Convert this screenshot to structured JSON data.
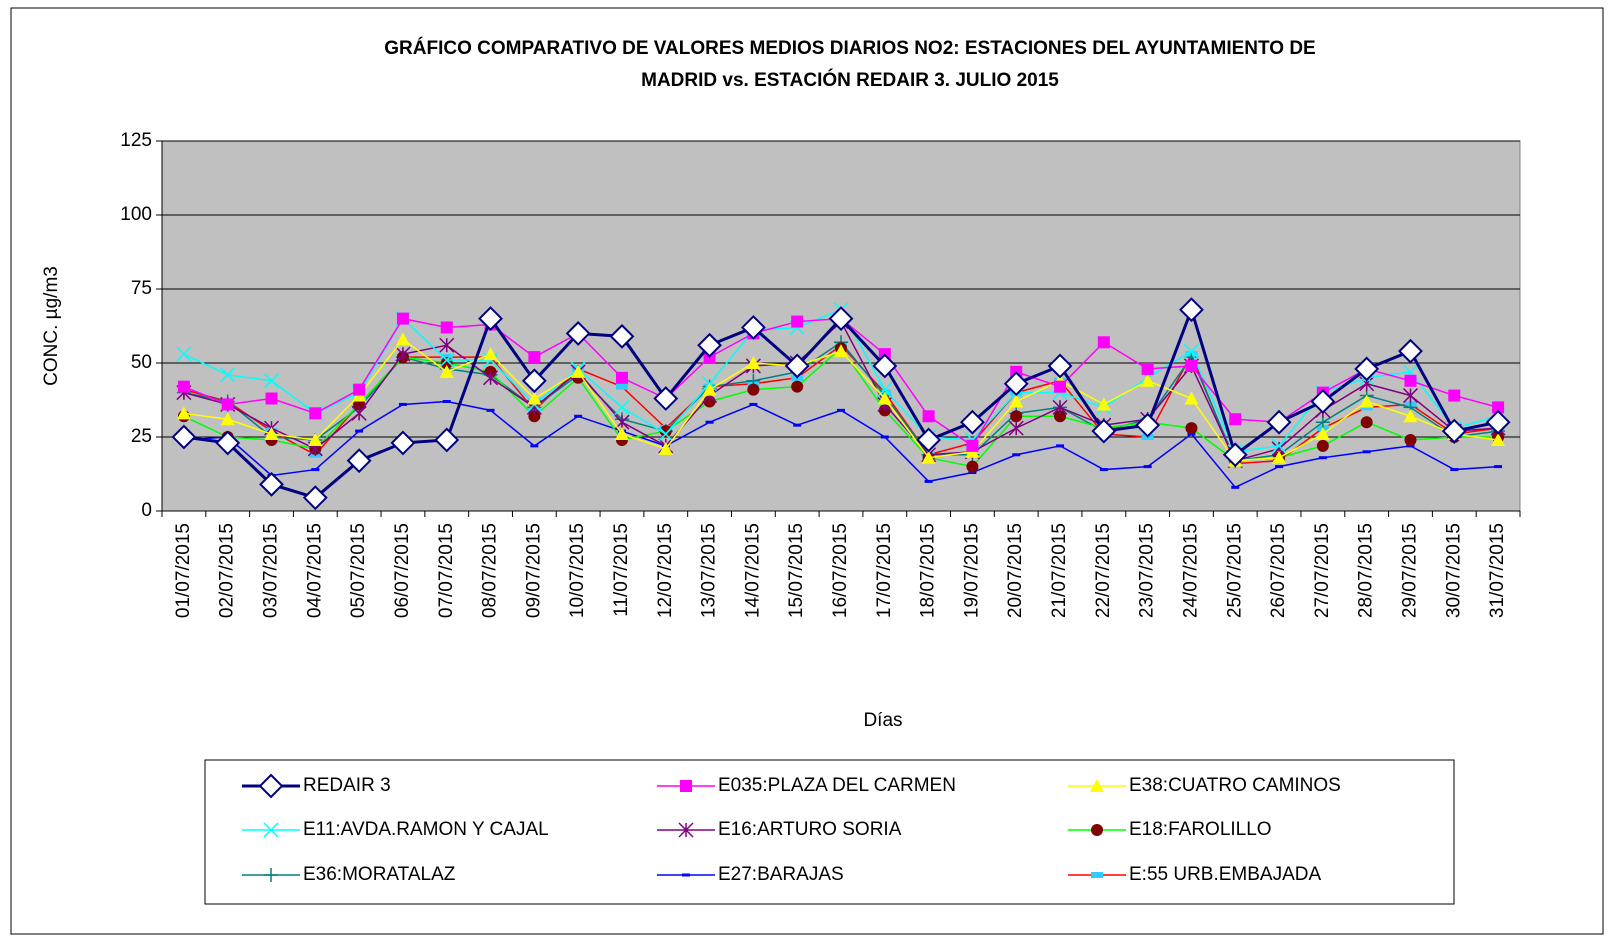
{
  "chart_data": {
    "type": "line",
    "title": [
      "GRÁFICO COMPARATIVO DE VALORES MEDIOS DIARIOS NO2: ESTACIONES DEL AYUNTAMIENTO DE",
      "MADRID vs.  ESTACIÓN REDAIR 3. JULIO 2015"
    ],
    "x_label": "Días",
    "y_label": "CONC.   µg/m3",
    "categories": [
      "01/07/2015",
      "02/07/2015",
      "03/07/2015",
      "04/07/2015",
      "05/07/2015",
      "06/07/2015",
      "07/07/2015",
      "08/07/2015",
      "09/07/2015",
      "10/07/2015",
      "11/07/2015",
      "12/07/2015",
      "13/07/2015",
      "14/07/2015",
      "15/07/2015",
      "16/07/2015",
      "17/07/2015",
      "18/07/2015",
      "19/07/2015",
      "20/07/2015",
      "21/07/2015",
      "22/07/2015",
      "23/07/2015",
      "24/07/2015",
      "25/07/2015",
      "26/07/2015",
      "27/07/2015",
      "28/07/2015",
      "29/07/2015",
      "30/07/2015",
      "31/07/2015"
    ],
    "ylim": [
      0,
      125
    ],
    "yticks": [
      0,
      25,
      50,
      75,
      100,
      125
    ],
    "grid": true,
    "plot_background": "#c0c0c0",
    "series": [
      {
        "name": "REDAIR 3",
        "color": "#000080",
        "marker": "diamond",
        "marker_color": "#000080",
        "values": [
          25,
          23,
          9,
          4.5,
          17,
          23,
          24,
          65,
          44,
          60,
          59,
          38,
          56,
          62,
          49,
          65,
          49,
          24,
          30,
          43,
          49,
          27,
          29,
          68,
          19,
          30,
          37,
          48,
          54,
          27,
          30
        ]
      },
      {
        "name": "E035:PLAZA DEL CARMEN",
        "color": "#ff00ff",
        "marker": "square",
        "marker_color": "#ff00ff",
        "values": [
          42,
          36,
          38,
          33,
          41,
          65,
          62,
          63,
          52,
          60,
          45,
          38,
          52,
          60,
          64,
          65,
          53,
          32,
          22,
          47,
          42,
          57,
          48,
          49,
          31,
          30,
          40,
          48,
          44,
          39,
          35
        ]
      },
      {
        "name": "E38:CUATRO CAMINOS",
        "color": "#ffff00",
        "marker": "triangle",
        "marker_color": "#ffff00",
        "values": [
          33,
          31,
          26,
          24,
          39,
          58,
          47,
          53,
          38,
          47,
          26,
          21,
          41,
          50,
          49,
          54,
          38,
          18,
          20,
          37,
          44,
          36,
          44,
          38,
          17,
          18,
          26,
          37,
          32,
          26,
          24
        ]
      },
      {
        "name": "E11:AVDA.RAMON Y CAJAL",
        "color": "#00ffff",
        "marker": "x",
        "marker_color": "#00ffff",
        "values": [
          53,
          46,
          44,
          33,
          40,
          65,
          51,
          51,
          36,
          48,
          35,
          26,
          43,
          61,
          62,
          68,
          41,
          25,
          24,
          40,
          40,
          35,
          45,
          54,
          20,
          22,
          40,
          45,
          47,
          28,
          32
        ]
      },
      {
        "name": "E16:ARTURO SORIA",
        "color": "#800080",
        "marker": "star",
        "marker_color": "#800080",
        "values": [
          40,
          36,
          28,
          21,
          33,
          53,
          56,
          45,
          35,
          47,
          30,
          22,
          39,
          49,
          50,
          64,
          36,
          19,
          20,
          28,
          35,
          29,
          31,
          49,
          17,
          21,
          34,
          43,
          39,
          27,
          28
        ]
      },
      {
        "name": "E18:FAROLILLO",
        "color": "#00ff00",
        "marker": "circle",
        "marker_color": "#800000",
        "values": [
          32,
          25,
          24,
          21,
          36,
          52,
          50,
          47,
          32,
          45,
          24,
          27,
          37,
          41,
          42,
          55,
          34,
          18,
          15,
          32,
          32,
          28,
          30,
          28,
          17,
          18,
          22,
          30,
          24,
          25,
          25
        ]
      },
      {
        "name": "E36:MORATALAZ",
        "color": "#008080",
        "marker": "plus",
        "marker_color": "#008080",
        "values": [
          40,
          37,
          25,
          24,
          35,
          52,
          48,
          46,
          35,
          46,
          31,
          27,
          42,
          44,
          47,
          57,
          39,
          19,
          19,
          33,
          35,
          27,
          31,
          52,
          17,
          19,
          30,
          39,
          35,
          25,
          27
        ]
      },
      {
        "name": "E27:BARAJAS",
        "color": "#0000ff",
        "marker": "dash",
        "marker_color": "#0000ff",
        "values": [
          24,
          25,
          12,
          14,
          27,
          36,
          37,
          34,
          22,
          32,
          27,
          22,
          30,
          36,
          29,
          34,
          25,
          10,
          13,
          19,
          22,
          14,
          15,
          26,
          8,
          15,
          18,
          20,
          22,
          14,
          15
        ]
      },
      {
        "name": "E:55 URB.EMBAJADA",
        "color": "#ff0000",
        "marker": "smallsquare",
        "marker_color": "#33ccff",
        "values": [
          41,
          37,
          27,
          19,
          36,
          52,
          52,
          52,
          34,
          48,
          42,
          28,
          42,
          43,
          45,
          56,
          40,
          19,
          23,
          40,
          44,
          26,
          25,
          53,
          16,
          17,
          28,
          35,
          36,
          26,
          28
        ]
      }
    ]
  }
}
